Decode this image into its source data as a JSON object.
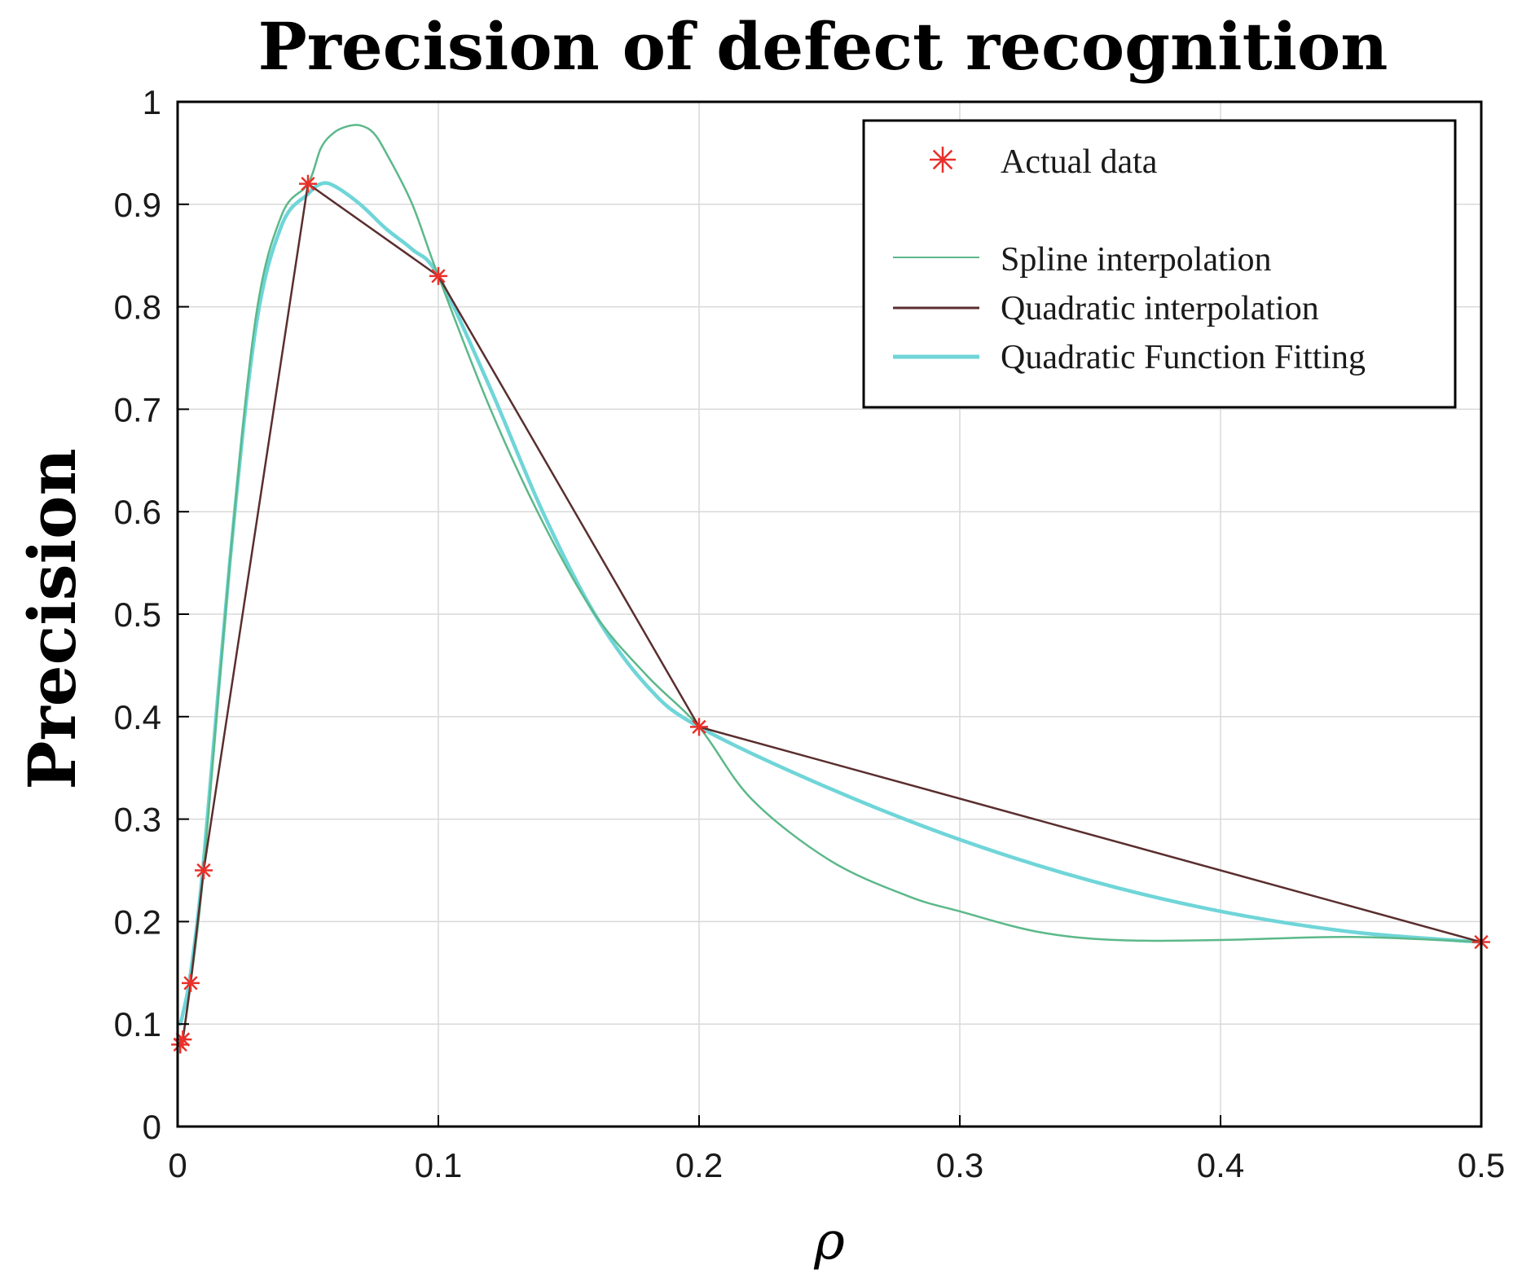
{
  "chart_data": {
    "type": "line",
    "title": "Precision of defect recognition",
    "xlabel": "ρ",
    "ylabel": "Precision",
    "xlim": [
      0,
      0.5
    ],
    "ylim": [
      0,
      1
    ],
    "grid": true,
    "legend_position": "top-right",
    "x_ticks": [
      0,
      0.1,
      0.2,
      0.3,
      0.4,
      0.5
    ],
    "x_tick_labels": [
      "0",
      "0.1",
      "0.2",
      "0.3",
      "0.4",
      "0.5"
    ],
    "y_ticks": [
      0,
      0.1,
      0.2,
      0.3,
      0.4,
      0.5,
      0.6,
      0.7,
      0.8,
      0.9,
      1
    ],
    "y_tick_labels": [
      "0",
      "0.1",
      "0.2",
      "0.3",
      "0.4",
      "0.5",
      "0.6",
      "0.7",
      "0.8",
      "0.9",
      "1"
    ],
    "actual_data": {
      "name": "Actual data",
      "color": "#e8302a",
      "marker": "asterisk",
      "x": [
        0.001,
        0.002,
        0.005,
        0.01,
        0.05,
        0.1,
        0.2,
        0.5
      ],
      "y": [
        0.08,
        0.085,
        0.14,
        0.25,
        0.92,
        0.83,
        0.39,
        0.18
      ]
    },
    "series": [
      {
        "name": "Spline interpolation",
        "color": "#5cb88a",
        "style": "thin",
        "x": [
          0.001,
          0.002,
          0.005,
          0.01,
          0.02,
          0.03,
          0.04,
          0.05,
          0.055,
          0.06,
          0.065,
          0.07,
          0.075,
          0.08,
          0.09,
          0.1,
          0.12,
          0.14,
          0.16,
          0.18,
          0.2,
          0.22,
          0.25,
          0.28,
          0.3,
          0.33,
          0.36,
          0.4,
          0.45,
          0.5
        ],
        "y": [
          0.08,
          0.085,
          0.14,
          0.25,
          0.55,
          0.79,
          0.89,
          0.92,
          0.955,
          0.97,
          0.976,
          0.977,
          0.97,
          0.95,
          0.9,
          0.83,
          0.7,
          0.59,
          0.5,
          0.44,
          0.39,
          0.32,
          0.26,
          0.225,
          0.21,
          0.19,
          0.182,
          0.182,
          0.185,
          0.18
        ]
      },
      {
        "name": "Quadratic interpolation",
        "color": "#5a2e2e",
        "style": "thin",
        "x": [
          0.001,
          0.002,
          0.005,
          0.01,
          0.05,
          0.1,
          0.2,
          0.5
        ],
        "y": [
          0.08,
          0.085,
          0.14,
          0.25,
          0.92,
          0.83,
          0.39,
          0.18
        ]
      },
      {
        "name": "Quadratic Function Fitting",
        "color": "#6fd5d8",
        "style": "thick",
        "x": [
          0.001,
          0.002,
          0.005,
          0.01,
          0.02,
          0.03,
          0.04,
          0.05,
          0.055,
          0.06,
          0.07,
          0.08,
          0.09,
          0.1,
          0.12,
          0.14,
          0.16,
          0.18,
          0.2,
          0.25,
          0.3,
          0.35,
          0.4,
          0.45,
          0.5
        ],
        "y": [
          0.1,
          0.11,
          0.15,
          0.26,
          0.55,
          0.78,
          0.88,
          0.91,
          0.92,
          0.918,
          0.9,
          0.876,
          0.856,
          0.83,
          0.72,
          0.6,
          0.5,
          0.43,
          0.39,
          0.33,
          0.28,
          0.24,
          0.21,
          0.19,
          0.18
        ]
      }
    ]
  }
}
